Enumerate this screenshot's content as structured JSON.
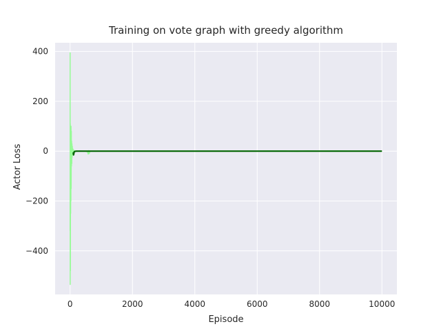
{
  "chart_data": {
    "type": "line",
    "title": "Training on vote graph with greedy algorithm",
    "xlabel": "Episode",
    "ylabel": "Actor Loss",
    "xlim": [
      -480,
      10480
    ],
    "ylim": [
      -575,
      435
    ],
    "x_ticks": [
      0,
      2000,
      4000,
      6000,
      8000,
      10000
    ],
    "y_ticks": [
      -400,
      -200,
      0,
      200,
      400
    ],
    "x_tick_labels": [
      "0",
      "2000",
      "4000",
      "6000",
      "8000",
      "10000"
    ],
    "y_tick_labels": [
      "−400",
      "−200",
      "0",
      "200",
      "400"
    ],
    "grid": true,
    "background_color": "#eaeaf2",
    "grid_color": "#ffffff",
    "series": [
      {
        "style": "raw",
        "color": "#98fb98",
        "x": [
          0,
          1,
          3,
          6,
          10,
          14,
          18,
          22,
          26,
          30,
          35,
          40,
          45,
          50,
          55,
          60,
          66,
          72,
          78,
          85,
          92,
          100,
          110,
          120,
          135,
          150,
          170,
          200,
          250,
          300,
          400,
          500,
          560,
          580,
          600,
          610,
          640,
          700,
          800,
          1000,
          1500,
          2000,
          3000,
          4000,
          5000,
          6000,
          6900,
          7000,
          7300,
          7600,
          8000,
          8600,
          9000,
          9500,
          10000
        ],
        "y": [
          -320,
          395,
          -535,
          110,
          -480,
          90,
          -250,
          60,
          -200,
          100,
          -150,
          80,
          -60,
          40,
          -50,
          30,
          -25,
          20,
          -15,
          10,
          -8,
          6,
          -4,
          3,
          -2,
          2,
          -1,
          1,
          0,
          1,
          0,
          0,
          -3,
          -12,
          2,
          -10,
          0,
          0,
          0,
          0,
          0,
          0,
          0,
          0,
          0,
          0,
          1,
          0,
          -1,
          1,
          0,
          1,
          0,
          0,
          0
        ]
      },
      {
        "style": "smoothed",
        "color": "#006400",
        "x": [
          100,
          110,
          120,
          130,
          150,
          200,
          300,
          500,
          1000,
          2000,
          4000,
          6000,
          8000,
          10000
        ],
        "y": [
          -5,
          -15,
          -10,
          -3,
          -1,
          0,
          0,
          0,
          0,
          0,
          0,
          0,
          0,
          0
        ]
      }
    ]
  }
}
